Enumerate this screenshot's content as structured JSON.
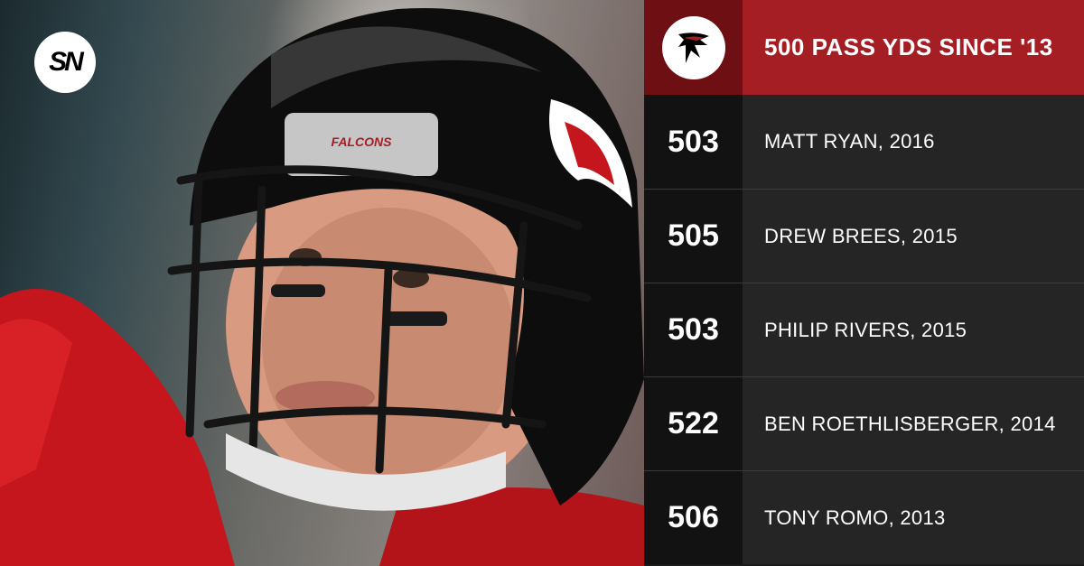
{
  "brand": {
    "logo_text": "SN"
  },
  "photo": {
    "helmet_text": "FALCONS"
  },
  "header": {
    "title": "500 PASS YDS SINCE '13",
    "team_logo_icon": "falcons-logo-icon",
    "accent_color": "#a51e24",
    "accent_dark": "#6e0f14"
  },
  "rows": [
    {
      "yards": "503",
      "player": "MATT RYAN, 2016"
    },
    {
      "yards": "505",
      "player": "DREW BREES, 2015"
    },
    {
      "yards": "503",
      "player": "PHILIP RIVERS, 2015"
    },
    {
      "yards": "522",
      "player": "BEN ROETHLISBERGER, 2014"
    },
    {
      "yards": "506",
      "player": "TONY ROMO, 2013"
    }
  ]
}
